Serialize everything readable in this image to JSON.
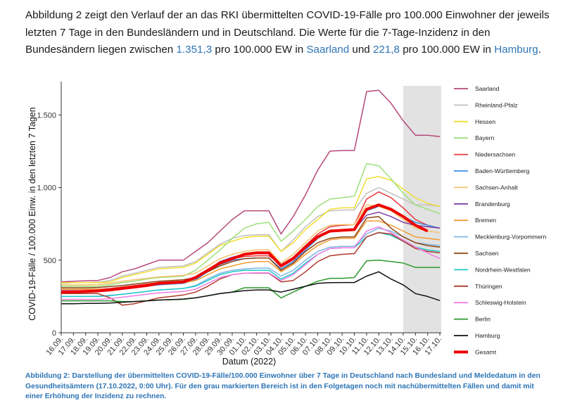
{
  "intro": {
    "p1": "Abbildung 2 zeigt den Verlauf der an das RKI übermittelten COVID-19-Fälle pro 100.000 Einwohner der jeweils letzten 7 Tage in den Bundesländern und in Deutschland. Die Werte für die 7-Tage-Inzidenz in den Bundesändern liegen zwischen ",
    "v_high": "1.351,3",
    "p2": " pro 100.000 EW in ",
    "state_high": "Saarland",
    "p3": " und ",
    "v_low": "221,8",
    "p4": " pro 100.000 EW in ",
    "state_low": "Hamburg",
    "p5": "."
  },
  "caption": "Abbildung 2: Darstellung der übermittelten COVID-19-Fälle/100.000 Einwohner über 7 Tage in Deutschland nach Bundesland und Meldedatum in den Gesundheitsämtern (17.10.2022, 0:00 Uhr). Für den grau markierten Bereich ist in den Folgetagen noch mit nachübermittelten Fällen und damit mit einer Erhöhung der Inzidenz zu rechnen.",
  "chart_data": {
    "type": "line",
    "xlabel": "Datum (2022)",
    "ylabel": "COVID-19-Fälle / 100.000 Einw. in den letzten 7 Tagen",
    "ylim": [
      0,
      1700
    ],
    "yticks": [
      0,
      500,
      1000,
      1500
    ],
    "ytick_labels": [
      "0",
      "500",
      "1.000",
      "1.500"
    ],
    "categories": [
      "16.09.",
      "17.09.",
      "18.09.",
      "19.09.",
      "20.09.",
      "21.09.",
      "22.09.",
      "23.09.",
      "24.09.",
      "25.09.",
      "26.09.",
      "27.09.",
      "28.09.",
      "29.09.",
      "30.09.",
      "01.10.",
      "02.10.",
      "03.10.",
      "04.10.",
      "05.10.",
      "06.10.",
      "07.10.",
      "08.10.",
      "09.10.",
      "10.10.",
      "11.10.",
      "12.10.",
      "13.10.",
      "14.10.",
      "15.10.",
      "16.10.",
      "17.10."
    ],
    "shaded_from": "14.10.",
    "shaded_to": "17.10.",
    "grid": false,
    "legend_position": "right",
    "series": [
      {
        "name": "Saarland",
        "color": "#b7487a",
        "width": 1.5,
        "values": [
          350,
          355,
          358,
          360,
          380,
          420,
          440,
          470,
          500,
          500,
          500,
          560,
          620,
          700,
          780,
          840,
          840,
          840,
          680,
          800,
          950,
          1120,
          1250,
          1255,
          1255,
          1660,
          1670,
          1580,
          1460,
          1360,
          1360,
          1351
        ]
      },
      {
        "name": "Rheinland-Pfalz",
        "color": "#c0c0c0",
        "width": 1.5,
        "values": [
          340,
          345,
          345,
          348,
          360,
          390,
          410,
          430,
          450,
          455,
          460,
          490,
          550,
          610,
          650,
          670,
          675,
          675,
          560,
          640,
          730,
          800,
          840,
          845,
          845,
          960,
          1000,
          960,
          920,
          880,
          880,
          870
        ]
      },
      {
        "name": "Hessen",
        "color": "#f2de30",
        "width": 1.5,
        "values": [
          345,
          345,
          345,
          345,
          350,
          380,
          400,
          420,
          440,
          445,
          450,
          480,
          540,
          600,
          630,
          655,
          665,
          665,
          560,
          620,
          710,
          780,
          850,
          860,
          860,
          1060,
          1075,
          1050,
          990,
          930,
          890,
          870
        ]
      },
      {
        "name": "Bayern",
        "color": "#9de07a",
        "width": 1.5,
        "values": [
          320,
          320,
          320,
          320,
          330,
          345,
          355,
          370,
          380,
          385,
          390,
          430,
          500,
          570,
          650,
          720,
          750,
          760,
          630,
          700,
          780,
          870,
          920,
          930,
          940,
          1165,
          1150,
          1060,
          960,
          880,
          850,
          820
        ]
      },
      {
        "name": "Niedersachsen",
        "color": "#e8383d",
        "width": 1.5,
        "values": [
          300,
          300,
          300,
          300,
          305,
          315,
          325,
          335,
          345,
          350,
          355,
          380,
          430,
          490,
          510,
          525,
          530,
          530,
          470,
          520,
          600,
          680,
          730,
          740,
          745,
          920,
          970,
          930,
          860,
          780,
          740,
          720
        ]
      },
      {
        "name": "Baden-Württemberg",
        "color": "#3a8ee6",
        "width": 1.5,
        "values": [
          280,
          280,
          280,
          282,
          290,
          300,
          310,
          320,
          330,
          335,
          340,
          365,
          420,
          470,
          500,
          510,
          515,
          515,
          440,
          490,
          570,
          650,
          700,
          710,
          710,
          840,
          870,
          850,
          800,
          760,
          740,
          720
        ]
      },
      {
        "name": "Sachsen-Anhalt",
        "color": "#f5c26b",
        "width": 1.5,
        "values": [
          330,
          330,
          330,
          332,
          340,
          355,
          365,
          375,
          385,
          390,
          395,
          410,
          460,
          510,
          540,
          560,
          570,
          570,
          480,
          540,
          620,
          700,
          740,
          745,
          745,
          880,
          870,
          840,
          780,
          720,
          700,
          690
        ]
      },
      {
        "name": "Brandenburg",
        "color": "#7d3ea8",
        "width": 1.5,
        "values": [
          290,
          290,
          290,
          292,
          300,
          310,
          320,
          330,
          340,
          345,
          350,
          380,
          430,
          490,
          520,
          540,
          545,
          545,
          470,
          510,
          590,
          660,
          700,
          705,
          710,
          810,
          830,
          800,
          760,
          740,
          730,
          720
        ]
      },
      {
        "name": "Bremen",
        "color": "#f39c32",
        "width": 1.5,
        "values": [
          300,
          300,
          300,
          300,
          300,
          310,
          320,
          330,
          340,
          340,
          345,
          360,
          400,
          440,
          460,
          480,
          490,
          490,
          420,
          470,
          540,
          600,
          640,
          650,
          650,
          770,
          770,
          740,
          700,
          660,
          650,
          640
        ]
      },
      {
        "name": "Mecklenburg-Vorpommern",
        "color": "#7fb5e0",
        "width": 1.5,
        "values": [
          250,
          250,
          250,
          252,
          258,
          265,
          275,
          285,
          295,
          300,
          305,
          325,
          370,
          410,
          430,
          440,
          445,
          445,
          390,
          430,
          500,
          560,
          590,
          595,
          595,
          680,
          720,
          700,
          660,
          620,
          610,
          600
        ]
      },
      {
        "name": "Sachsen",
        "color": "#8b4513",
        "width": 1.5,
        "values": [
          310,
          310,
          310,
          312,
          318,
          325,
          335,
          345,
          355,
          360,
          365,
          380,
          420,
          460,
          490,
          510,
          515,
          515,
          430,
          480,
          560,
          620,
          650,
          660,
          660,
          790,
          800,
          720,
          660,
          620,
          600,
          590
        ]
      },
      {
        "name": "Nordrhein-Westfalen",
        "color": "#20c9c9",
        "width": 1.5,
        "values": [
          250,
          250,
          250,
          250,
          255,
          265,
          275,
          285,
          295,
          300,
          305,
          320,
          360,
          400,
          420,
          430,
          430,
          430,
          370,
          410,
          480,
          540,
          580,
          585,
          585,
          660,
          690,
          670,
          630,
          590,
          570,
          560
        ]
      },
      {
        "name": "Thüringen",
        "color": "#b03a2e",
        "width": 1.5,
        "values": [
          270,
          270,
          270,
          270,
          240,
          190,
          200,
          220,
          240,
          250,
          260,
          280,
          320,
          370,
          400,
          410,
          410,
          410,
          350,
          360,
          420,
          490,
          530,
          540,
          545,
          660,
          690,
          680,
          630,
          580,
          560,
          550
        ]
      },
      {
        "name": "Schleswig-Holstein",
        "color": "#f07ce6",
        "width": 1.5,
        "values": [
          230,
          230,
          230,
          230,
          235,
          245,
          255,
          265,
          275,
          280,
          285,
          300,
          340,
          380,
          400,
          410,
          412,
          412,
          360,
          400,
          470,
          540,
          580,
          585,
          585,
          700,
          730,
          690,
          640,
          590,
          550,
          510
        ]
      },
      {
        "name": "Berlin",
        "color": "#2e9a2e",
        "width": 1.5,
        "values": [
          220,
          220,
          220,
          220,
          220,
          215,
          215,
          220,
          225,
          228,
          230,
          240,
          255,
          270,
          280,
          310,
          310,
          310,
          240,
          280,
          320,
          355,
          375,
          375,
          380,
          495,
          500,
          490,
          480,
          450,
          450,
          450
        ]
      },
      {
        "name": "Hamburg",
        "color": "#111111",
        "width": 1.5,
        "values": [
          200,
          200,
          202,
          202,
          205,
          210,
          215,
          220,
          225,
          228,
          232,
          240,
          255,
          270,
          280,
          290,
          295,
          295,
          280,
          300,
          320,
          340,
          345,
          346,
          346,
          390,
          420,
          370,
          330,
          270,
          250,
          222
        ]
      },
      {
        "name": "Gesamt",
        "color": "#ee0000",
        "width": 4,
        "values": [
          280,
          282,
          285,
          288,
          295,
          305,
          315,
          325,
          340,
          345,
          350,
          380,
          430,
          480,
          510,
          540,
          550,
          550,
          460,
          510,
          590,
          660,
          700,
          705,
          710,
          850,
          880,
          850,
          800,
          740,
          700,
          null
        ]
      }
    ]
  }
}
